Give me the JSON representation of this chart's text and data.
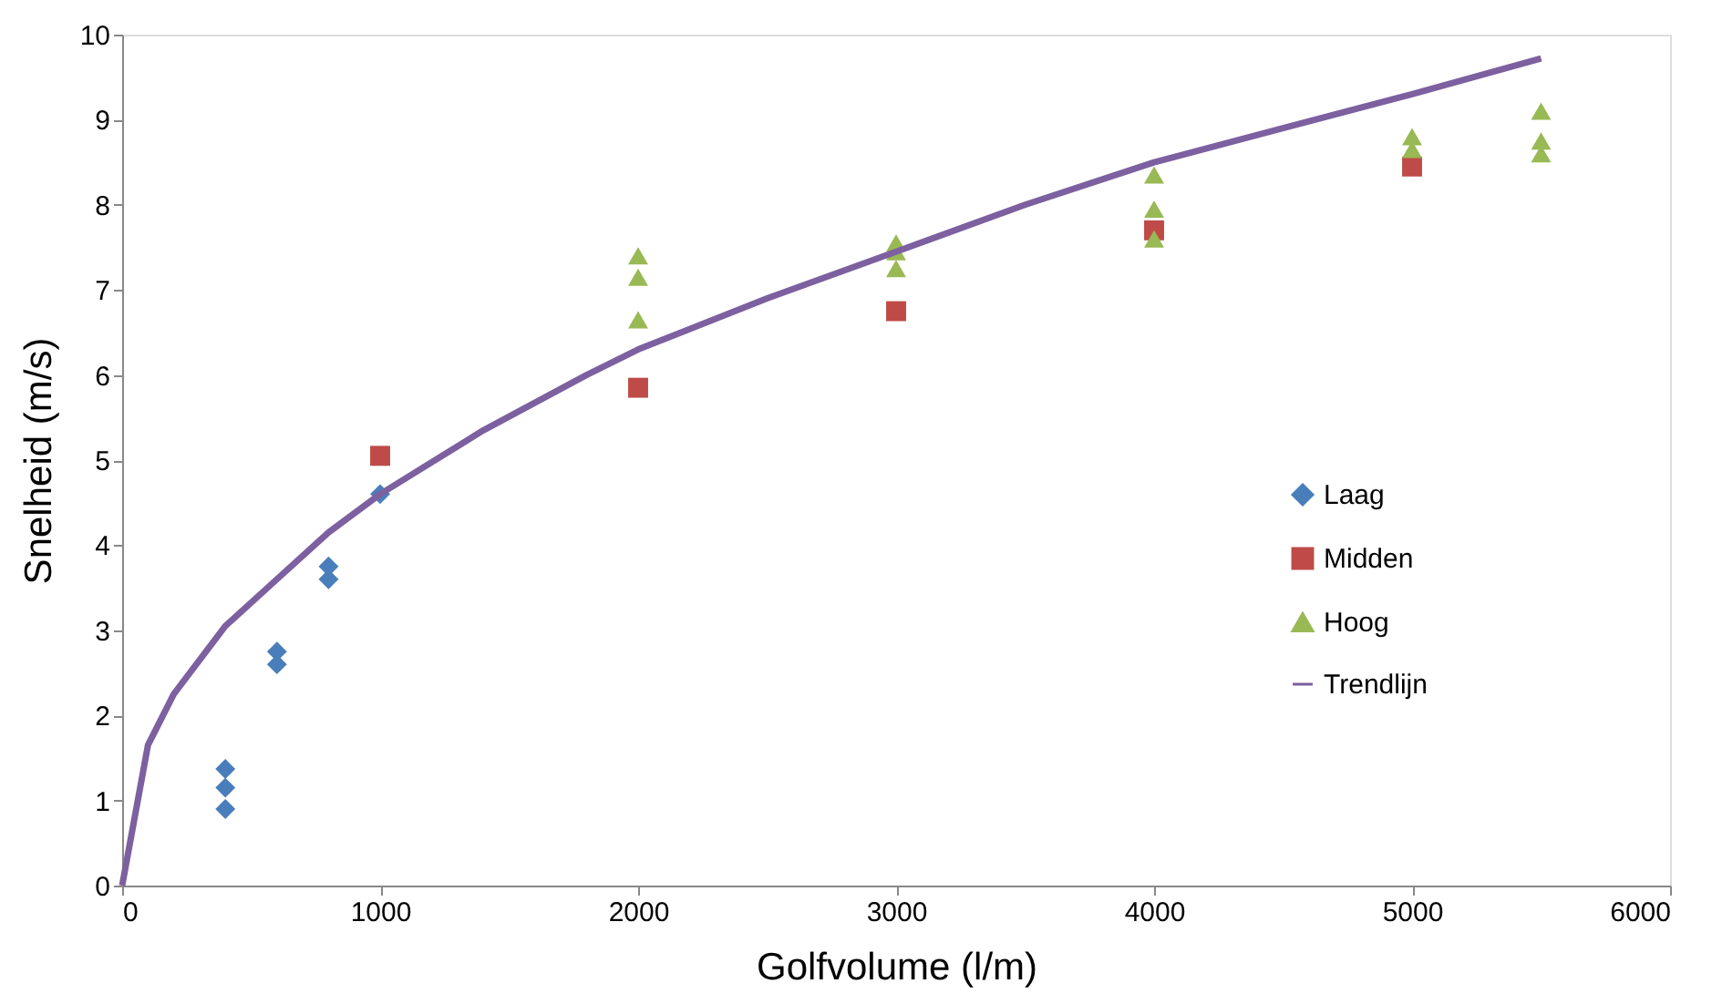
{
  "chart_data": {
    "type": "scatter",
    "xlabel": "Golfvolume (l/m)",
    "ylabel": "Snelheid (m/s)",
    "xlim": [
      0,
      6000
    ],
    "xticks": [
      0,
      1000,
      2000,
      3000,
      4000,
      5000,
      6000
    ],
    "ylim": [
      0,
      10
    ],
    "yticks": [
      0,
      1,
      2,
      3,
      4,
      5,
      6,
      7,
      8,
      9,
      10
    ],
    "grid": false,
    "legend": "right",
    "series": [
      {
        "name": "Laag",
        "color": "#4a7ebb",
        "marker": "diamond",
        "x": [
          400,
          400,
          400,
          600,
          600,
          800,
          800,
          1000
        ],
        "values": [
          0.9,
          1.15,
          1.37,
          2.6,
          2.75,
          3.6,
          3.75,
          4.6
        ]
      },
      {
        "name": "Midden",
        "color": "#be4b48",
        "marker": "square",
        "x": [
          1000,
          2000,
          3000,
          4000,
          5000
        ],
        "values": [
          5.05,
          5.85,
          6.75,
          7.7,
          8.45
        ]
      },
      {
        "name": "Hoog",
        "color": "#98b954",
        "marker": "triangle",
        "x": [
          2000,
          2000,
          2000,
          3000,
          3000,
          3000,
          4000,
          4000,
          4000,
          5000,
          5000,
          5500,
          5500,
          5500
        ],
        "values": [
          6.65,
          7.15,
          7.4,
          7.25,
          7.45,
          7.55,
          7.6,
          7.95,
          8.35,
          8.65,
          8.8,
          8.6,
          8.75,
          9.1
        ]
      },
      {
        "name": "Trendlijn",
        "type": "line",
        "color": "#7d60a0",
        "marker": "none",
        "line_style": "solid",
        "x": [
          0,
          100,
          200,
          400,
          600,
          800,
          1000,
          1400,
          1800,
          2000,
          2500,
          3000,
          3500,
          4000,
          4500,
          5000,
          5500
        ],
        "values": [
          0,
          1.65,
          2.25,
          3.05,
          3.6,
          4.15,
          4.6,
          5.35,
          6.0,
          6.3,
          6.9,
          7.45,
          8.0,
          8.5,
          8.9,
          9.3,
          9.72
        ]
      }
    ]
  }
}
